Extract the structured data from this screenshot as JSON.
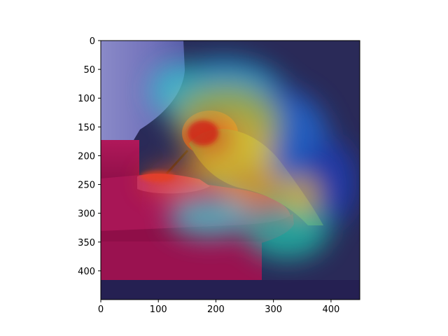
{
  "chart_data": {
    "type": "heatmap",
    "title": "",
    "xlabel": "",
    "ylabel": "",
    "xlim": [
      0,
      450
    ],
    "ylim": [
      450,
      0
    ],
    "x_ticks": [
      0,
      100,
      200,
      300,
      400
    ],
    "y_ticks": [
      0,
      50,
      100,
      150,
      200,
      250,
      300,
      350,
      400
    ],
    "grid": false,
    "legend": "none",
    "colormap": "jet",
    "image_content": "hummingbird-at-feeder-saliency-overlay",
    "hotspots": [
      {
        "name": "head",
        "x": 205,
        "y": 180,
        "intensity": 1.0
      },
      {
        "name": "beak-and-feeder-port",
        "x": 130,
        "y": 250,
        "intensity": 0.9
      },
      {
        "name": "upper-body",
        "x": 240,
        "y": 130,
        "intensity": 0.7
      },
      {
        "name": "wing",
        "x": 290,
        "y": 230,
        "intensity": 0.65
      },
      {
        "name": "tail",
        "x": 365,
        "y": 270,
        "intensity": 0.6
      },
      {
        "name": "lower-right",
        "x": 320,
        "y": 340,
        "intensity": 0.45
      },
      {
        "name": "top-center",
        "x": 215,
        "y": 55,
        "intensity": 0.35
      },
      {
        "name": "right-background",
        "x": 330,
        "y": 130,
        "intensity": 0.35
      }
    ]
  }
}
